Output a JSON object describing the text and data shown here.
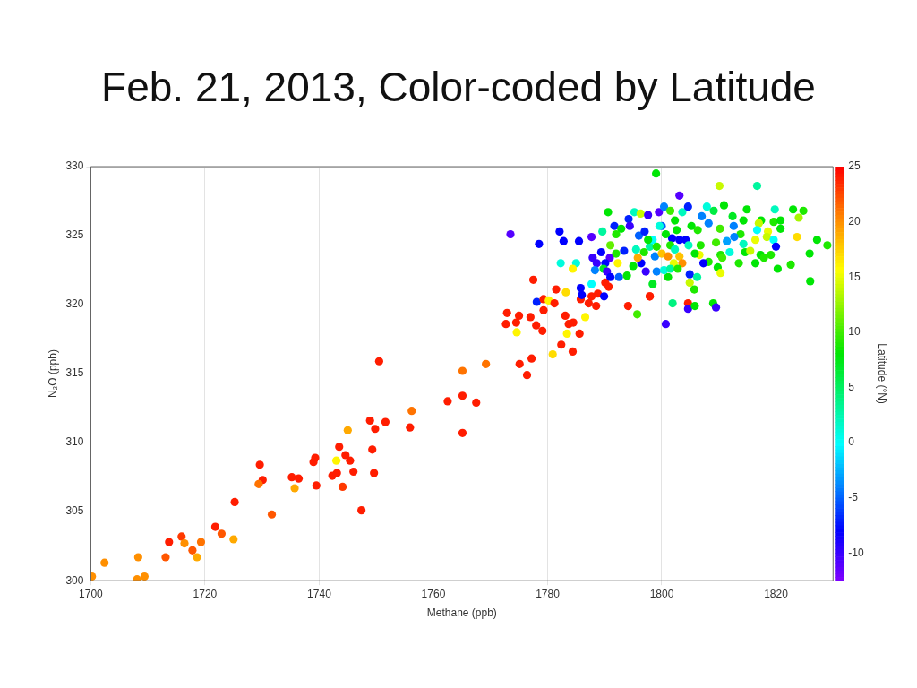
{
  "chart_data": {
    "type": "scatter",
    "title": "Feb. 21, 2013, Color-coded by Latitude",
    "xlabel": "Methane (ppb)",
    "ylabel": "N₂O (ppb)",
    "clabel": "Latitude (°N)",
    "xlim": [
      1700,
      1830
    ],
    "xticks": [
      1700,
      1720,
      1740,
      1760,
      1780,
      1800,
      1820
    ],
    "ylim": [
      300,
      330
    ],
    "yticks": [
      300,
      305,
      310,
      315,
      320,
      325,
      330
    ],
    "clim": [
      -12.5,
      25
    ],
    "cticks": [
      -10,
      -5,
      0,
      5,
      10,
      15,
      20,
      25
    ],
    "grid": true,
    "legend": false,
    "marker": "circle",
    "x": [
      1700.2,
      1702.4,
      1708.1,
      1708.3,
      1709.4,
      1713.1,
      1713.7,
      1715.9,
      1716.4,
      1717.8,
      1718.6,
      1719.3,
      1721.8,
      1722.9,
      1725.0,
      1725.2,
      1729.6,
      1730.1,
      1729.4,
      1731.7,
      1735.2,
      1736.4,
      1735.7,
      1739.0,
      1739.3,
      1739.5,
      1742.3,
      1743.1,
      1743.0,
      1743.5,
      1744.6,
      1745.4,
      1746.0,
      1744.1,
      1745.0,
      1747.4,
      1748.9,
      1749.8,
      1751.6,
      1749.3,
      1749.6,
      1750.5,
      1756.2,
      1755.9,
      1762.5,
      1765.1,
      1765.1,
      1767.5,
      1765.1,
      1769.2,
      1775.1,
      1777.2,
      1776.4,
      1780.9,
      1784.4,
      1782.4,
      1785.6,
      1783.4,
      1786.6,
      1772.7,
      1772.9,
      1774.5,
      1775.0,
      1774.6,
      1777.0,
      1778.0,
      1779.1,
      1779.3,
      1783.1,
      1783.7,
      1784.5,
      1777.5,
      1781.5,
      1783.2,
      1778.1,
      1779.3,
      1780.2,
      1781.2,
      1785.8,
      1785.8,
      1786.0,
      1787.2,
      1787.7,
      1788.5,
      1788.8,
      1789.9,
      1794.1,
      1795.7,
      1797.9,
      1787.7,
      1790.1,
      1790.7,
      1799.0,
      1773.5,
      1778.5,
      1782.1,
      1782.8,
      1785.5,
      1787.7,
      1782.3,
      1785.0,
      1784.4,
      1790.6,
      1789.6,
      1791.7,
      1792.9,
      1792.0,
      1794.2,
      1794.4,
      1796.0,
      1797.0,
      1795.2,
      1796.3,
      1797.6,
      1799.5,
      1800.0,
      1791.0,
      1787.9,
      1789.4,
      1790.9,
      1788.6,
      1790.1,
      1789.8,
      1788.3,
      1792.3,
      1793.4,
      1792.0,
      1790.4,
      1791.0,
      1792.5,
      1793.9,
      1795.0,
      1796.4,
      1797.2,
      1795.5,
      1796.9,
      1795.8,
      1797.9,
      1798.8,
      1800.0,
      1798.4,
      1799.1,
      1801.1,
      1800.4,
      1797.9,
      1800.7,
      1801.9,
      1803.1,
      1800.4,
      1801.5,
      1803.6,
      1802.3,
      1802.6,
      1801.8,
      1803.1,
      1801.5,
      1802.3,
      1803.1,
      1802.1,
      1801.1,
      1801.5,
      1810.1,
      1816.7,
      1804.6,
      1807.9,
      1809.1,
      1810.9,
      1814.9,
      1819.8,
      1823.0,
      1824.8,
      1824.0,
      1807.0,
      1812.4,
      1814.3,
      1817.4,
      1819.6,
      1820.8,
      1817.0,
      1820.8,
      1808.2,
      1812.6,
      1816.7,
      1818.6,
      1810.2,
      1805.2,
      1806.3,
      1813.8,
      1812.7,
      1811.4,
      1814.3,
      1816.4,
      1818.4,
      1819.6,
      1820.0,
      1823.7,
      1827.2,
      1829.0,
      1804.2,
      1804.7,
      1806.8,
      1809.5,
      1811.9,
      1814.6,
      1815.5,
      1817.3,
      1819.1,
      1817.9,
      1825.9,
      1813.5,
      1816.4,
      1820.3,
      1822.6,
      1826.0,
      1810.3,
      1810.6,
      1808.2,
      1809.8,
      1810.3,
      1807.3,
      1806.6,
      1805.8,
      1803.6,
      1802.8,
      1804.9,
      1806.2,
      1804.9,
      1805.7,
      1804.6,
      1804.6,
      1805.8,
      1809.0,
      1809.5,
      1799.6,
      1800.7,
      1798.4,
      1799.1,
      1797.6
    ],
    "values": [
      300.3,
      301.3,
      300.1,
      301.7,
      300.3,
      301.7,
      302.8,
      303.2,
      302.7,
      302.2,
      301.7,
      302.8,
      303.9,
      303.4,
      303.0,
      305.7,
      308.4,
      307.3,
      307.0,
      304.8,
      307.5,
      307.4,
      306.7,
      308.6,
      308.9,
      306.9,
      307.6,
      307.8,
      308.7,
      309.7,
      309.1,
      308.7,
      307.9,
      306.8,
      310.9,
      305.1,
      311.6,
      311.0,
      311.5,
      309.5,
      307.8,
      315.9,
      312.3,
      311.1,
      313.0,
      313.4,
      315.2,
      312.9,
      310.7,
      315.7,
      315.7,
      316.1,
      314.9,
      316.4,
      316.6,
      317.1,
      317.9,
      317.9,
      319.1,
      318.6,
      319.4,
      318.7,
      319.2,
      318.0,
      319.1,
      318.5,
      318.1,
      319.6,
      319.2,
      318.6,
      318.7,
      321.8,
      321.1,
      320.9,
      320.2,
      320.4,
      320.3,
      320.1,
      320.4,
      321.2,
      320.7,
      320.1,
      320.6,
      319.9,
      320.8,
      320.6,
      319.9,
      319.3,
      320.6,
      321.5,
      321.6,
      321.3,
      329.5,
      325.1,
      324.4,
      325.3,
      324.6,
      324.6,
      324.9,
      323.0,
      323.0,
      322.6,
      326.7,
      325.3,
      325.7,
      325.5,
      325.1,
      326.2,
      325.7,
      325.0,
      325.3,
      326.7,
      326.6,
      326.5,
      326.7,
      325.7,
      324.3,
      323.4,
      323.8,
      323.4,
      323.0,
      323.0,
      322.6,
      322.5,
      323.0,
      323.9,
      323.7,
      322.4,
      322.0,
      322.0,
      322.1,
      322.8,
      323.0,
      322.4,
      324.0,
      323.8,
      323.4,
      324.2,
      323.5,
      323.7,
      321.5,
      322.4,
      322.0,
      322.5,
      320.6,
      318.6,
      320.1,
      327.9,
      327.1,
      326.8,
      326.7,
      326.1,
      325.4,
      324.8,
      324.7,
      324.3,
      324.0,
      323.5,
      323.0,
      323.5,
      322.6,
      328.6,
      328.6,
      327.1,
      327.1,
      326.8,
      327.2,
      326.9,
      326.9,
      326.9,
      326.8,
      326.3,
      326.4,
      326.4,
      326.1,
      326.1,
      326.0,
      326.1,
      325.9,
      325.5,
      325.9,
      325.7,
      325.4,
      325.3,
      325.5,
      325.7,
      325.4,
      325.1,
      324.9,
      324.6,
      324.4,
      324.7,
      324.9,
      324.7,
      324.2,
      324.9,
      324.7,
      324.3,
      324.7,
      324.3,
      324.3,
      324.5,
      323.8,
      323.8,
      323.9,
      323.6,
      323.6,
      323.4,
      323.7,
      323.0,
      323.0,
      322.6,
      322.9,
      321.7,
      323.6,
      323.4,
      323.1,
      322.7,
      322.3,
      323.0,
      323.6,
      323.7,
      323.0,
      322.6,
      322.2,
      322.0,
      321.6,
      321.1,
      320.1,
      319.7,
      319.9,
      320.1,
      319.8,
      325.7,
      325.1,
      324.7,
      324.2,
      324.7
    ],
    "cvalues": [
      20,
      20,
      20,
      20,
      20,
      22,
      24,
      23,
      20,
      22,
      19,
      21,
      24,
      22,
      19,
      24,
      24,
      24,
      21,
      22,
      24,
      24,
      19,
      24,
      24,
      24,
      24,
      24,
      16,
      24,
      24,
      24,
      24,
      23,
      19,
      24,
      24,
      24,
      24,
      24,
      24,
      24,
      21,
      24,
      24,
      24,
      21,
      24,
      24,
      21,
      24,
      24,
      24,
      17,
      24,
      24,
      24,
      16,
      16,
      24,
      24,
      24,
      24,
      16,
      24,
      24,
      24,
      24,
      24,
      24,
      24,
      24,
      24,
      17,
      -7,
      24,
      16,
      24,
      24,
      -8,
      -8,
      24,
      24,
      24,
      24,
      -8,
      24,
      10,
      24,
      0,
      24,
      24,
      8,
      -11,
      -8,
      -8,
      -8,
      -8,
      -11,
      1,
      1,
      16,
      8,
      3,
      -7,
      8,
      9,
      -7,
      -10,
      -5,
      -7,
      2,
      14,
      -10,
      -11,
      -5,
      11,
      -10,
      -8,
      -11,
      -10,
      -8,
      7,
      -4,
      16,
      -7,
      9,
      -10,
      -8,
      -5,
      8,
      8,
      -8,
      -10,
      2,
      9,
      19,
      3,
      -4,
      18,
      7,
      -4,
      8,
      1,
      24,
      -10,
      4,
      -11,
      -4,
      10,
      2,
      8,
      8,
      -8,
      -8,
      9,
      2,
      18,
      15,
      20,
      3,
      14,
      3,
      -7,
      1,
      6,
      8,
      8,
      2,
      8,
      9,
      13,
      -4,
      7,
      8,
      8,
      9,
      8,
      14,
      8,
      -4,
      -4,
      0,
      15,
      10,
      8,
      9,
      9,
      -4,
      -3,
      2,
      15,
      14,
      0,
      -8,
      17,
      8,
      9,
      -8,
      2,
      9,
      10,
      1,
      8,
      14,
      8,
      9,
      9,
      8,
      9,
      8,
      8,
      9,
      8,
      9,
      10,
      9,
      8,
      15,
      -8,
      15,
      8,
      20,
      9,
      -7,
      3,
      14,
      9,
      24,
      -10,
      8,
      8,
      -10,
      1,
      8,
      0,
      9,
      8
    ]
  }
}
